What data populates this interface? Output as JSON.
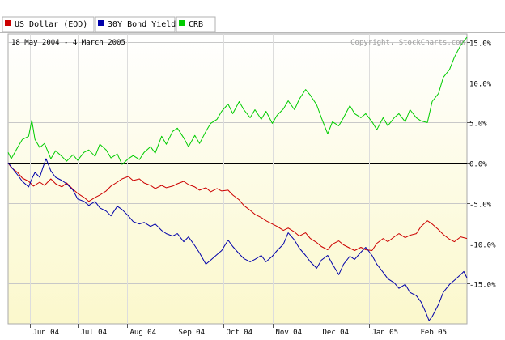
{
  "chart_data": {
    "type": "line",
    "date_range": "18 May 2004 - 4 March 2005",
    "copyright": "Copyright, StockCharts.com",
    "legend_placement": "top-left",
    "grid": true,
    "ylim": [
      -20,
      16
    ],
    "y_ticks": [
      15,
      10,
      5,
      0,
      -5,
      -10,
      -15
    ],
    "y_tick_labels": [
      "15.0%",
      "10.0%",
      "5.0%",
      "0.0%",
      "-5.0%",
      "-10.0%",
      "-15.0%"
    ],
    "x_ticks": [
      "Jun 04",
      "Jul 04",
      "Aug 04",
      "Sep 04",
      "Oct 04",
      "Nov 04",
      "Dec 04",
      "Jan 05",
      "Feb 05"
    ],
    "x_tick_dates": [
      "2004-06-01",
      "2004-07-01",
      "2004-08-01",
      "2004-09-01",
      "2004-10-01",
      "2004-11-01",
      "2004-12-01",
      "2005-01-01",
      "2005-02-01"
    ],
    "series": [
      {
        "name": "US Dollar (EOD)",
        "color": "#cc0000",
        "points": [
          [
            "2004-05-18",
            0
          ],
          [
            "2004-05-20",
            -0.6
          ],
          [
            "2004-05-24",
            -1.2
          ],
          [
            "2004-05-27",
            -1.9
          ],
          [
            "2004-05-31",
            -2.3
          ],
          [
            "2004-06-03",
            -2.9
          ],
          [
            "2004-06-07",
            -2.4
          ],
          [
            "2004-06-10",
            -2.8
          ],
          [
            "2004-06-14",
            -2.0
          ],
          [
            "2004-06-17",
            -2.6
          ],
          [
            "2004-06-21",
            -3.0
          ],
          [
            "2004-06-24",
            -2.5
          ],
          [
            "2004-06-28",
            -3.3
          ],
          [
            "2004-07-01",
            -3.8
          ],
          [
            "2004-07-05",
            -4.3
          ],
          [
            "2004-07-08",
            -4.8
          ],
          [
            "2004-07-12",
            -4.3
          ],
          [
            "2004-07-15",
            -4.0
          ],
          [
            "2004-07-19",
            -3.5
          ],
          [
            "2004-07-22",
            -2.9
          ],
          [
            "2004-07-26",
            -2.4
          ],
          [
            "2004-07-29",
            -2.0
          ],
          [
            "2004-08-02",
            -1.7
          ],
          [
            "2004-08-05",
            -2.2
          ],
          [
            "2004-08-09",
            -2.0
          ],
          [
            "2004-08-12",
            -2.5
          ],
          [
            "2004-08-16",
            -2.8
          ],
          [
            "2004-08-19",
            -3.2
          ],
          [
            "2004-08-23",
            -2.8
          ],
          [
            "2004-08-26",
            -3.1
          ],
          [
            "2004-08-30",
            -2.9
          ],
          [
            "2004-09-02",
            -2.6
          ],
          [
            "2004-09-06",
            -2.3
          ],
          [
            "2004-09-09",
            -2.7
          ],
          [
            "2004-09-13",
            -3.0
          ],
          [
            "2004-09-16",
            -3.4
          ],
          [
            "2004-09-20",
            -3.1
          ],
          [
            "2004-09-23",
            -3.6
          ],
          [
            "2004-09-27",
            -3.2
          ],
          [
            "2004-09-30",
            -3.5
          ],
          [
            "2004-10-04",
            -3.4
          ],
          [
            "2004-10-07",
            -4.0
          ],
          [
            "2004-10-11",
            -4.6
          ],
          [
            "2004-10-14",
            -5.3
          ],
          [
            "2004-10-18",
            -5.9
          ],
          [
            "2004-10-21",
            -6.4
          ],
          [
            "2004-10-25",
            -6.8
          ],
          [
            "2004-10-28",
            -7.2
          ],
          [
            "2004-11-01",
            -7.6
          ],
          [
            "2004-11-04",
            -7.9
          ],
          [
            "2004-11-08",
            -8.4
          ],
          [
            "2004-11-11",
            -8.1
          ],
          [
            "2004-11-15",
            -8.6
          ],
          [
            "2004-11-18",
            -9.1
          ],
          [
            "2004-11-22",
            -8.7
          ],
          [
            "2004-11-25",
            -9.4
          ],
          [
            "2004-11-29",
            -9.9
          ],
          [
            "2004-12-02",
            -10.4
          ],
          [
            "2004-12-06",
            -10.8
          ],
          [
            "2004-12-09",
            -10.1
          ],
          [
            "2004-12-13",
            -9.7
          ],
          [
            "2004-12-16",
            -10.2
          ],
          [
            "2004-12-20",
            -10.6
          ],
          [
            "2004-12-23",
            -10.9
          ],
          [
            "2004-12-27",
            -10.5
          ],
          [
            "2004-12-30",
            -10.8
          ],
          [
            "2005-01-03",
            -10.9
          ],
          [
            "2005-01-06",
            -10.0
          ],
          [
            "2005-01-10",
            -9.4
          ],
          [
            "2005-01-13",
            -9.8
          ],
          [
            "2005-01-17",
            -9.2
          ],
          [
            "2005-01-20",
            -8.8
          ],
          [
            "2005-01-24",
            -9.3
          ],
          [
            "2005-01-27",
            -9.0
          ],
          [
            "2005-01-31",
            -8.8
          ],
          [
            "2005-02-03",
            -7.9
          ],
          [
            "2005-02-07",
            -7.2
          ],
          [
            "2005-02-10",
            -7.6
          ],
          [
            "2005-02-14",
            -8.3
          ],
          [
            "2005-02-17",
            -8.9
          ],
          [
            "2005-02-21",
            -9.5
          ],
          [
            "2005-02-24",
            -9.8
          ],
          [
            "2005-02-28",
            -9.2
          ],
          [
            "2005-03-04",
            -9.4
          ]
        ]
      },
      {
        "name": "30Y Bond Yield",
        "color": "#0000aa",
        "points": [
          [
            "2004-05-18",
            0
          ],
          [
            "2004-05-20",
            -0.5
          ],
          [
            "2004-05-24",
            -1.5
          ],
          [
            "2004-05-27",
            -2.3
          ],
          [
            "2004-05-31",
            -3.0
          ],
          [
            "2004-06-02",
            -2.0
          ],
          [
            "2004-06-04",
            -1.2
          ],
          [
            "2004-06-07",
            -1.8
          ],
          [
            "2004-06-09",
            -0.6
          ],
          [
            "2004-06-11",
            0.5
          ],
          [
            "2004-06-14",
            -1.0
          ],
          [
            "2004-06-17",
            -1.8
          ],
          [
            "2004-06-21",
            -2.2
          ],
          [
            "2004-06-24",
            -2.6
          ],
          [
            "2004-06-28",
            -3.4
          ],
          [
            "2004-07-01",
            -4.5
          ],
          [
            "2004-07-05",
            -4.8
          ],
          [
            "2004-07-08",
            -5.3
          ],
          [
            "2004-07-12",
            -4.8
          ],
          [
            "2004-07-15",
            -5.6
          ],
          [
            "2004-07-19",
            -6.0
          ],
          [
            "2004-07-22",
            -6.6
          ],
          [
            "2004-07-26",
            -5.4
          ],
          [
            "2004-07-29",
            -5.8
          ],
          [
            "2004-08-02",
            -6.6
          ],
          [
            "2004-08-05",
            -7.3
          ],
          [
            "2004-08-09",
            -7.6
          ],
          [
            "2004-08-12",
            -7.4
          ],
          [
            "2004-08-16",
            -7.9
          ],
          [
            "2004-08-19",
            -7.6
          ],
          [
            "2004-08-23",
            -8.4
          ],
          [
            "2004-08-26",
            -8.8
          ],
          [
            "2004-08-30",
            -9.1
          ],
          [
            "2004-09-02",
            -8.8
          ],
          [
            "2004-09-06",
            -9.8
          ],
          [
            "2004-09-09",
            -9.2
          ],
          [
            "2004-09-13",
            -10.3
          ],
          [
            "2004-09-16",
            -11.2
          ],
          [
            "2004-09-20",
            -12.6
          ],
          [
            "2004-09-23",
            -12.1
          ],
          [
            "2004-09-27",
            -11.4
          ],
          [
            "2004-09-30",
            -10.9
          ],
          [
            "2004-10-04",
            -9.6
          ],
          [
            "2004-10-07",
            -10.4
          ],
          [
            "2004-10-11",
            -11.3
          ],
          [
            "2004-10-14",
            -11.9
          ],
          [
            "2004-10-18",
            -12.3
          ],
          [
            "2004-10-21",
            -12.0
          ],
          [
            "2004-10-25",
            -11.5
          ],
          [
            "2004-10-28",
            -12.3
          ],
          [
            "2004-11-01",
            -11.6
          ],
          [
            "2004-11-04",
            -10.9
          ],
          [
            "2004-11-08",
            -10.1
          ],
          [
            "2004-11-11",
            -8.7
          ],
          [
            "2004-11-15",
            -9.6
          ],
          [
            "2004-11-18",
            -10.6
          ],
          [
            "2004-11-22",
            -11.5
          ],
          [
            "2004-11-25",
            -12.3
          ],
          [
            "2004-11-29",
            -13.1
          ],
          [
            "2004-12-02",
            -12.1
          ],
          [
            "2004-12-06",
            -11.5
          ],
          [
            "2004-12-09",
            -12.6
          ],
          [
            "2004-12-13",
            -13.9
          ],
          [
            "2004-12-16",
            -12.6
          ],
          [
            "2004-12-20",
            -11.6
          ],
          [
            "2004-12-23",
            -12.0
          ],
          [
            "2004-12-27",
            -11.1
          ],
          [
            "2004-12-30",
            -10.5
          ],
          [
            "2005-01-03",
            -11.5
          ],
          [
            "2005-01-06",
            -12.6
          ],
          [
            "2005-01-10",
            -13.6
          ],
          [
            "2005-01-13",
            -14.4
          ],
          [
            "2005-01-17",
            -14.9
          ],
          [
            "2005-01-20",
            -15.6
          ],
          [
            "2005-01-24",
            -15.1
          ],
          [
            "2005-01-27",
            -16.1
          ],
          [
            "2005-01-31",
            -16.5
          ],
          [
            "2005-02-03",
            -17.3
          ],
          [
            "2005-02-06",
            -18.6
          ],
          [
            "2005-02-08",
            -19.6
          ],
          [
            "2005-02-10",
            -19.1
          ],
          [
            "2005-02-14",
            -17.6
          ],
          [
            "2005-02-17",
            -16.1
          ],
          [
            "2005-02-21",
            -15.1
          ],
          [
            "2005-02-24",
            -14.6
          ],
          [
            "2005-02-28",
            -13.9
          ],
          [
            "2005-03-02",
            -13.5
          ],
          [
            "2005-03-04",
            -14.3
          ]
        ]
      },
      {
        "name": "CRB",
        "color": "#00cc00",
        "points": [
          [
            "2004-05-18",
            1.3
          ],
          [
            "2004-05-20",
            0.5
          ],
          [
            "2004-05-24",
            1.9
          ],
          [
            "2004-05-27",
            2.9
          ],
          [
            "2004-05-31",
            3.3
          ],
          [
            "2004-06-02",
            5.3
          ],
          [
            "2004-06-04",
            2.9
          ],
          [
            "2004-06-07",
            1.9
          ],
          [
            "2004-06-10",
            2.4
          ],
          [
            "2004-06-14",
            0.5
          ],
          [
            "2004-06-17",
            1.5
          ],
          [
            "2004-06-21",
            0.8
          ],
          [
            "2004-06-24",
            0.2
          ],
          [
            "2004-06-28",
            1.0
          ],
          [
            "2004-07-01",
            0.3
          ],
          [
            "2004-07-05",
            1.3
          ],
          [
            "2004-07-08",
            1.6
          ],
          [
            "2004-07-12",
            0.8
          ],
          [
            "2004-07-15",
            2.3
          ],
          [
            "2004-07-19",
            1.6
          ],
          [
            "2004-07-22",
            0.6
          ],
          [
            "2004-07-26",
            1.1
          ],
          [
            "2004-07-29",
            -0.2
          ],
          [
            "2004-08-02",
            0.5
          ],
          [
            "2004-08-05",
            0.9
          ],
          [
            "2004-08-09",
            0.4
          ],
          [
            "2004-08-12",
            1.3
          ],
          [
            "2004-08-16",
            2.0
          ],
          [
            "2004-08-19",
            1.2
          ],
          [
            "2004-08-23",
            3.3
          ],
          [
            "2004-08-26",
            2.3
          ],
          [
            "2004-08-30",
            3.9
          ],
          [
            "2004-09-02",
            4.3
          ],
          [
            "2004-09-06",
            3.1
          ],
          [
            "2004-09-09",
            2.0
          ],
          [
            "2004-09-13",
            3.4
          ],
          [
            "2004-09-16",
            2.4
          ],
          [
            "2004-09-20",
            3.9
          ],
          [
            "2004-09-23",
            4.9
          ],
          [
            "2004-09-27",
            5.4
          ],
          [
            "2004-09-30",
            6.4
          ],
          [
            "2004-10-04",
            7.3
          ],
          [
            "2004-10-07",
            6.1
          ],
          [
            "2004-10-11",
            7.6
          ],
          [
            "2004-10-14",
            6.6
          ],
          [
            "2004-10-18",
            5.6
          ],
          [
            "2004-10-21",
            6.6
          ],
          [
            "2004-10-25",
            5.4
          ],
          [
            "2004-10-28",
            6.4
          ],
          [
            "2004-11-01",
            4.9
          ],
          [
            "2004-11-04",
            5.9
          ],
          [
            "2004-11-08",
            6.7
          ],
          [
            "2004-11-11",
            7.7
          ],
          [
            "2004-11-15",
            6.6
          ],
          [
            "2004-11-18",
            7.9
          ],
          [
            "2004-11-22",
            9.1
          ],
          [
            "2004-11-25",
            8.4
          ],
          [
            "2004-11-29",
            7.2
          ],
          [
            "2004-12-02",
            5.6
          ],
          [
            "2004-12-06",
            3.6
          ],
          [
            "2004-12-09",
            5.1
          ],
          [
            "2004-12-13",
            4.6
          ],
          [
            "2004-12-16",
            5.6
          ],
          [
            "2004-12-20",
            7.1
          ],
          [
            "2004-12-23",
            6.1
          ],
          [
            "2004-12-27",
            5.6
          ],
          [
            "2004-12-30",
            6.1
          ],
          [
            "2005-01-03",
            5.1
          ],
          [
            "2005-01-06",
            4.1
          ],
          [
            "2005-01-10",
            5.6
          ],
          [
            "2005-01-13",
            4.6
          ],
          [
            "2005-01-17",
            5.6
          ],
          [
            "2005-01-20",
            6.1
          ],
          [
            "2005-01-24",
            5.1
          ],
          [
            "2005-01-27",
            6.6
          ],
          [
            "2005-01-31",
            5.6
          ],
          [
            "2005-02-03",
            5.2
          ],
          [
            "2005-02-07",
            5.0
          ],
          [
            "2005-02-10",
            7.6
          ],
          [
            "2005-02-14",
            8.6
          ],
          [
            "2005-02-17",
            10.6
          ],
          [
            "2005-02-21",
            11.6
          ],
          [
            "2005-02-24",
            13.1
          ],
          [
            "2005-02-28",
            14.6
          ],
          [
            "2005-03-04",
            15.6
          ]
        ]
      }
    ]
  }
}
